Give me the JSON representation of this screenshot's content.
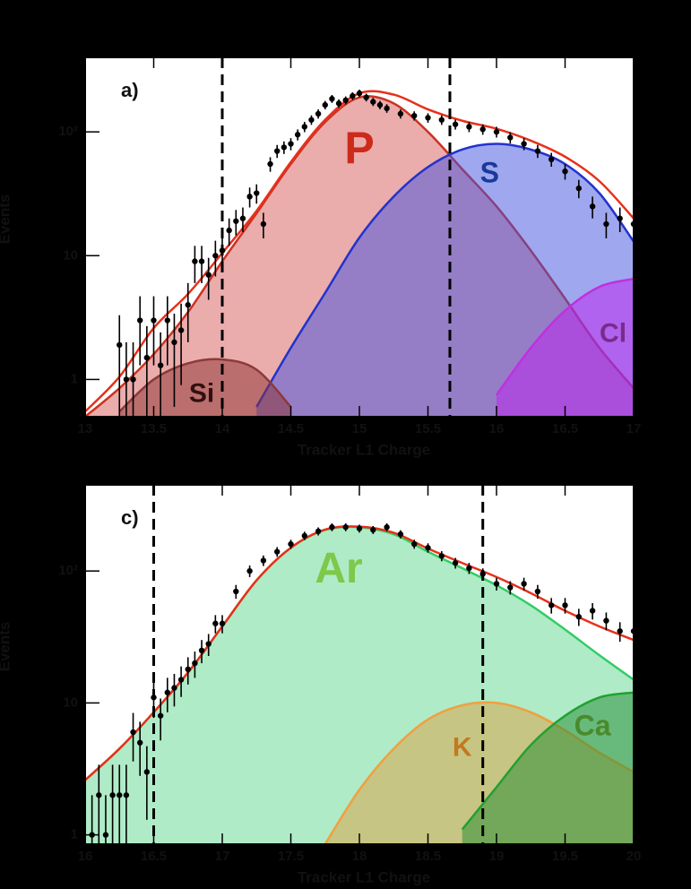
{
  "chart_data": [
    {
      "type": "area",
      "panel_label": "a)",
      "xlabel": "Tracker L1 Charge",
      "ylabel": "Events",
      "log_y": true,
      "xlim": [
        13,
        17
      ],
      "ylim": [
        0.5,
        400
      ],
      "xticks": [
        13,
        13.5,
        14,
        14.5,
        15,
        15.5,
        16,
        16.5,
        17
      ],
      "yticks": [
        1,
        10,
        {
          "value": 100,
          "label": "10²"
        }
      ],
      "vlines": [
        14,
        15.66
      ],
      "x": [
        13,
        13.25,
        13.5,
        13.75,
        14,
        14.25,
        14.5,
        14.75,
        15,
        15.25,
        15.5,
        15.75,
        16,
        16.25,
        16.5,
        16.75,
        17
      ],
      "series": [
        {
          "name": "P",
          "color": "#d85a5a",
          "line_color": "#cc3322",
          "label_color": "#cc2a1a",
          "values": [
            0.5,
            0.85,
            1.6,
            3.5,
            9,
            22,
            55,
            120,
            190,
            170,
            100,
            50,
            25,
            11,
            4.5,
            1.8,
            0.85
          ]
        },
        {
          "name": "S",
          "color": "#4050e0",
          "line_color": "#2233cc",
          "label_color": "#1a3a9a",
          "values": [
            null,
            null,
            null,
            null,
            null,
            0.6,
            1.8,
            5,
            14,
            30,
            52,
            72,
            80,
            72,
            55,
            32,
            13
          ]
        },
        {
          "name": "Si",
          "color": "#8b3030",
          "line_color": "#8b3a3a",
          "label_color": "#301010",
          "values": [
            null,
            0.55,
            1.0,
            1.35,
            1.45,
            1.2,
            0.6,
            null,
            null,
            null,
            null,
            null,
            null,
            null,
            null,
            null,
            null
          ]
        },
        {
          "name": "Cl",
          "color": "#c020f0",
          "line_color": "#c030e0",
          "label_color": "#7a2a8a",
          "values": [
            null,
            null,
            null,
            null,
            null,
            null,
            null,
            null,
            null,
            null,
            null,
            null,
            0.75,
            1.8,
            3.6,
            5.6,
            6.5
          ]
        }
      ],
      "fit": {
        "color": "#e8301a",
        "values": [
          0.55,
          1.05,
          2.6,
          4.9,
          10.5,
          23,
          57,
          125,
          205,
          200,
          152,
          123,
          106,
          85,
          63,
          40,
          20
        ]
      },
      "points": {
        "color": "#000000",
        "x": [
          13.25,
          13.3,
          13.35,
          13.4,
          13.45,
          13.5,
          13.55,
          13.6,
          13.65,
          13.7,
          13.75,
          13.8,
          13.85,
          13.9,
          13.95,
          14.0,
          14.05,
          14.1,
          14.15,
          14.2,
          14.25,
          14.3,
          14.35,
          14.4,
          14.45,
          14.5,
          14.55,
          14.6,
          14.65,
          14.7,
          14.75,
          14.8,
          14.85,
          14.9,
          14.95,
          15.0,
          15.05,
          15.1,
          15.15,
          15.2,
          15.3,
          15.4,
          15.5,
          15.6,
          15.7,
          15.8,
          15.9,
          16.0,
          16.1,
          16.2,
          16.3,
          16.4,
          16.5,
          16.6,
          16.7,
          16.8,
          16.9,
          17.0
        ],
        "values": [
          1.9,
          1,
          1,
          3,
          1.5,
          3,
          1.3,
          3,
          2,
          2.5,
          4,
          9,
          9,
          7,
          10,
          11,
          16,
          19,
          20,
          30,
          32,
          18,
          55,
          70,
          75,
          80,
          95,
          110,
          125,
          140,
          165,
          185,
          170,
          180,
          195,
          205,
          190,
          175,
          165,
          155,
          140,
          135,
          130,
          125,
          115,
          110,
          105,
          100,
          90,
          80,
          70,
          60,
          48,
          35,
          25,
          18,
          20,
          18
        ],
        "errors": [
          1.4,
          1,
          1,
          1.7,
          1.2,
          1.7,
          1.1,
          1.7,
          1.4,
          1.6,
          2,
          3,
          3,
          2.6,
          3.2,
          3.3,
          4,
          4.4,
          4.5,
          5.5,
          5.7,
          4.2,
          7.4,
          8.4,
          8.7,
          9,
          9.7,
          10.5,
          11,
          12,
          13,
          13.6,
          13,
          13.4,
          14,
          14.3,
          13.8,
          13.2,
          12.8,
          12.4,
          11.8,
          11.6,
          11.4,
          11.2,
          10.7,
          10.5,
          10.2,
          10,
          9.5,
          8.9,
          8.4,
          7.7,
          6.9,
          5.9,
          5,
          4.2,
          4.5,
          4.2
        ]
      }
    },
    {
      "type": "area",
      "panel_label": "c)",
      "xlabel": "Tracker L1 Charge",
      "ylabel": "Events",
      "log_y": true,
      "xlim": [
        16,
        20
      ],
      "ylim": [
        0.85,
        450
      ],
      "xticks": [
        16,
        16.5,
        17,
        17.5,
        18,
        18.5,
        19,
        19.5,
        20
      ],
      "yticks": [
        1,
        10,
        {
          "value": 100,
          "label": "10²"
        }
      ],
      "vlines": [
        16.5,
        18.9
      ],
      "x": [
        16,
        16.25,
        16.5,
        16.75,
        17,
        17.25,
        17.5,
        17.75,
        18,
        18.25,
        18.5,
        18.75,
        19,
        19.25,
        19.5,
        19.75,
        20
      ],
      "series": [
        {
          "name": "Ar",
          "color": "#60d890",
          "line_color": "#33cc66",
          "label_color": "#7ec84a",
          "values": [
            2.6,
            4.5,
            8.5,
            17,
            38,
            85,
            150,
            205,
            215,
            190,
            140,
            105,
            78,
            55,
            36,
            23,
            15
          ]
        },
        {
          "name": "K",
          "color": "#e0a040",
          "line_color": "#f0a040",
          "label_color": "#c07a20",
          "values": [
            null,
            null,
            null,
            null,
            null,
            null,
            null,
            0.85,
            2.2,
            4.5,
            7.5,
            9.6,
            10,
            8.5,
            6.2,
            4.2,
            3.0
          ]
        },
        {
          "name": "Ca",
          "color": "#208a30",
          "line_color": "#22a030",
          "label_color": "#4a8a2a",
          "values": [
            null,
            null,
            null,
            null,
            null,
            null,
            null,
            null,
            null,
            null,
            null,
            1.1,
            2.3,
            4.8,
            8,
            11,
            12
          ]
        }
      ],
      "fit": {
        "color": "#e8301a",
        "values": [
          2.6,
          4.5,
          8.5,
          17,
          38,
          85,
          150,
          206,
          217,
          195,
          148,
          115,
          90,
          68,
          50,
          38,
          30
        ]
      },
      "points": {
        "color": "#000000",
        "x": [
          16.05,
          16.1,
          16.15,
          16.2,
          16.25,
          16.3,
          16.35,
          16.4,
          16.45,
          16.5,
          16.55,
          16.6,
          16.65,
          16.7,
          16.75,
          16.8,
          16.85,
          16.9,
          16.95,
          17.0,
          17.1,
          17.2,
          17.3,
          17.4,
          17.5,
          17.6,
          17.7,
          17.8,
          17.9,
          18.0,
          18.1,
          18.2,
          18.3,
          18.4,
          18.5,
          18.6,
          18.7,
          18.8,
          18.9,
          19.0,
          19.1,
          19.2,
          19.3,
          19.4,
          19.5,
          19.6,
          19.7,
          19.8,
          19.9,
          20.0
        ],
        "values": [
          1,
          2,
          1,
          2,
          2,
          2,
          6,
          5,
          3,
          11,
          8,
          12,
          13,
          15,
          18,
          20,
          25,
          28,
          40,
          40,
          70,
          100,
          120,
          140,
          160,
          185,
          200,
          215,
          215,
          210,
          205,
          215,
          190,
          160,
          150,
          130,
          115,
          105,
          95,
          80,
          75,
          80,
          70,
          55,
          55,
          45,
          50,
          42,
          35,
          35
        ],
        "errors": [
          1,
          1.4,
          1,
          1.4,
          1.4,
          1.4,
          2.4,
          2.2,
          1.7,
          3.3,
          2.8,
          3.5,
          3.6,
          3.9,
          4.2,
          4.5,
          5,
          5.3,
          6.3,
          6.3,
          8.4,
          10,
          11,
          11.8,
          12.6,
          13.6,
          14.1,
          14.7,
          14.7,
          14.5,
          14.3,
          14.7,
          13.8,
          12.6,
          12.2,
          11.4,
          10.7,
          10.2,
          9.7,
          8.9,
          8.7,
          8.9,
          8.4,
          7.4,
          7.4,
          6.7,
          7.1,
          6.5,
          5.9,
          5.9
        ]
      }
    }
  ]
}
